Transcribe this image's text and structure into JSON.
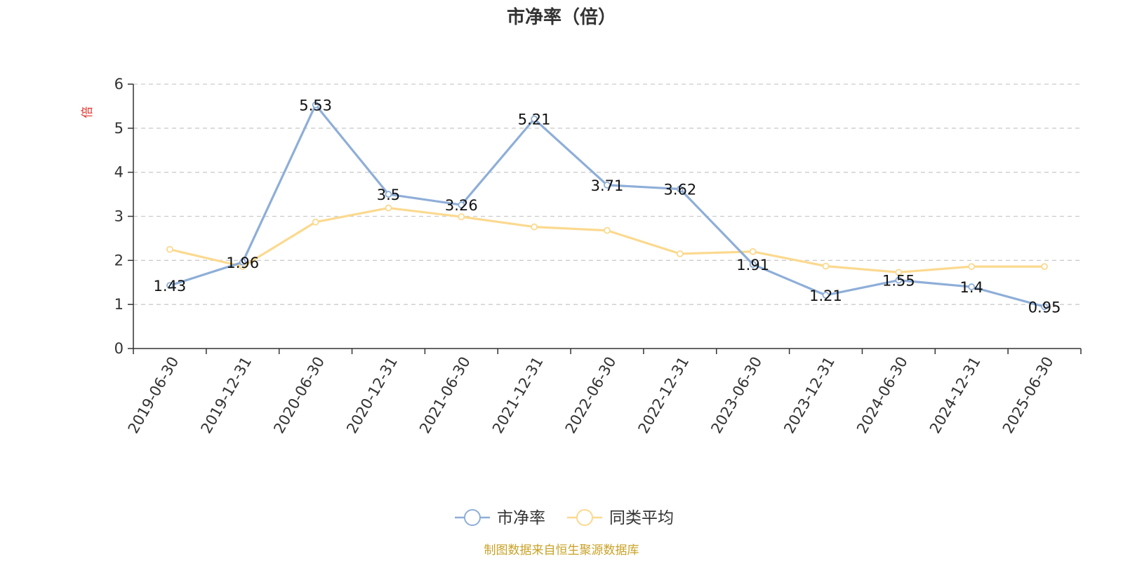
{
  "chart_data": {
    "type": "line",
    "title": "市净率（倍）",
    "ylabel": "倍",
    "xlabel": "",
    "categories": [
      "2019-06-30",
      "2019-12-31",
      "2020-06-30",
      "2020-12-31",
      "2021-06-30",
      "2021-12-31",
      "2022-06-30",
      "2022-12-31",
      "2023-06-30",
      "2023-12-31",
      "2024-06-30",
      "2024-12-31",
      "2025-06-30"
    ],
    "series": [
      {
        "name": "市净率",
        "values": [
          1.43,
          1.96,
          5.53,
          3.5,
          3.26,
          5.21,
          3.71,
          3.62,
          1.91,
          1.21,
          1.55,
          1.4,
          0.95
        ],
        "color": "#8eaed8",
        "show_labels": true
      },
      {
        "name": "同类平均",
        "values": [
          2.25,
          1.86,
          2.87,
          3.19,
          2.99,
          2.76,
          2.68,
          2.15,
          2.2,
          1.87,
          1.73,
          1.86,
          1.86
        ],
        "color": "#fbd98f",
        "show_labels": false
      }
    ],
    "ylim": [
      0,
      6
    ],
    "yticks": [
      0,
      1,
      2,
      3,
      4,
      5,
      6
    ],
    "grid": true,
    "legend": "bottom-center"
  },
  "source_note": "制图数据来自恒生聚源数据库"
}
